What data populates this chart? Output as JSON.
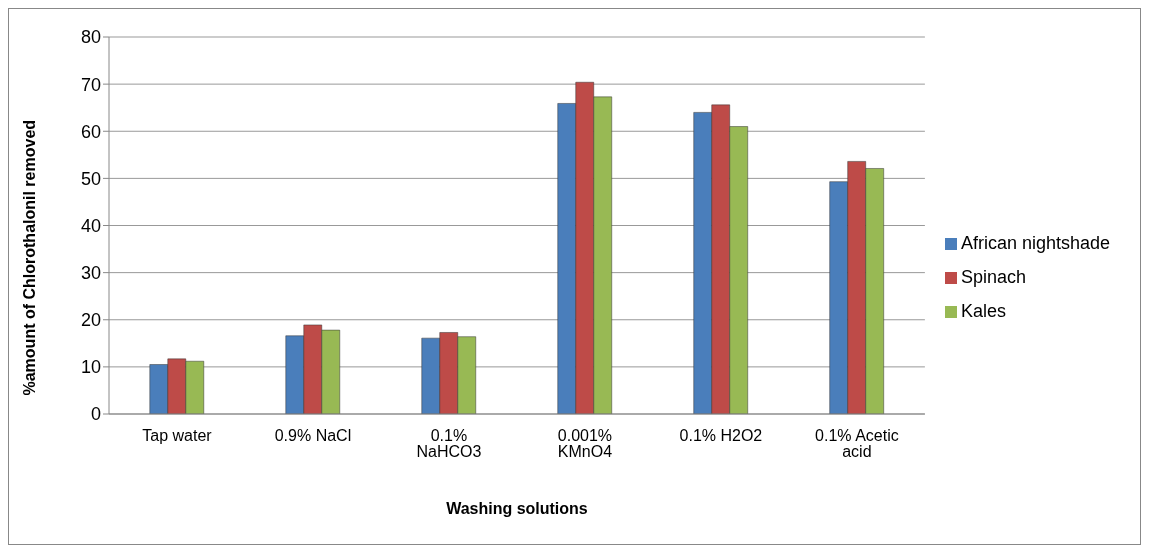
{
  "chart_data": {
    "type": "bar",
    "xlabel": "Washing solutions",
    "ylabel": "%amount of Chlorothalonil removed",
    "categories": [
      "Tap water",
      "0.9% NaCl",
      "0.1% NaHCO3",
      "0.001% KMnO4",
      "0.1% H2O2",
      "0.1% Acetic acid"
    ],
    "series": [
      {
        "name": "African nightshade",
        "color": "#4a7ebb",
        "values": [
          10.5,
          16.6,
          16.1,
          65.9,
          64.0,
          49.3
        ]
      },
      {
        "name": "Spinach",
        "color": "#be4b48",
        "values": [
          11.7,
          18.9,
          17.3,
          70.4,
          65.6,
          53.6
        ]
      },
      {
        "name": "Kales",
        "color": "#98b954",
        "values": [
          11.2,
          17.8,
          16.4,
          67.3,
          61.0,
          52.1
        ]
      }
    ],
    "ylim": [
      0,
      80
    ],
    "yticks": [
      0,
      10,
      20,
      30,
      40,
      50,
      60,
      70,
      80
    ],
    "grid": "y",
    "legend": "right"
  }
}
